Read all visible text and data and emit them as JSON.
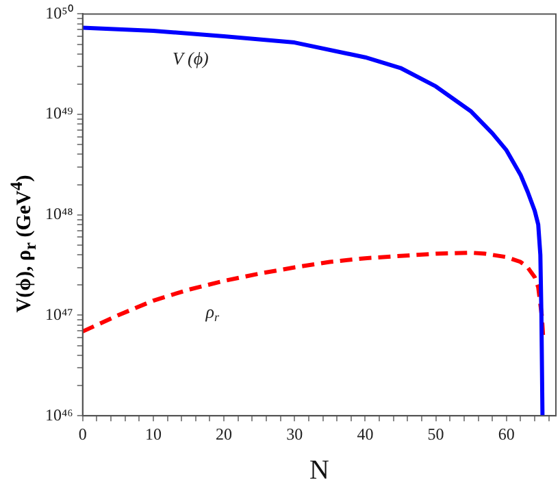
{
  "chart_data": {
    "type": "line",
    "xlabel": "N",
    "ylabel": "V(ϕ), ρ$_{r}$  (GeV$^{4}$)",
    "log": "y",
    "marker": "none",
    "grid": false,
    "legend": false,
    "xlim": [
      0,
      67
    ],
    "ylim": [
      1e+46,
      1e+50
    ],
    "xticks": [
      0,
      {
        "value": 2,
        "label": null
      },
      {
        "value": 4,
        "label": null
      },
      {
        "value": 6,
        "label": null
      },
      {
        "value": 8,
        "label": null
      },
      10,
      {
        "value": 12,
        "label": null
      },
      {
        "value": 14,
        "label": null
      },
      {
        "value": 16,
        "label": null
      },
      {
        "value": 18,
        "label": null
      },
      20,
      {
        "value": 22,
        "label": null
      },
      {
        "value": 24,
        "label": null
      },
      {
        "value": 26,
        "label": null
      },
      {
        "value": 28,
        "label": null
      },
      30,
      {
        "value": 32,
        "label": null
      },
      {
        "value": 34,
        "label": null
      },
      {
        "value": 36,
        "label": null
      },
      {
        "value": 38,
        "label": null
      },
      40,
      {
        "value": 42,
        "label": null
      },
      {
        "value": 44,
        "label": null
      },
      {
        "value": 46,
        "label": null
      },
      {
        "value": 48,
        "label": null
      },
      50,
      {
        "value": 52,
        "label": null
      },
      {
        "value": 54,
        "label": null
      },
      {
        "value": 56,
        "label": null
      },
      {
        "value": 58,
        "label": null
      },
      60,
      {
        "value": 62,
        "label": null
      },
      {
        "value": 64,
        "label": null
      },
      {
        "value": 66,
        "label": null
      }
    ],
    "yticks": [
      {
        "value": 1e+46,
        "label": "10⁴⁶"
      },
      {
        "value": 2e+46,
        "label": null
      },
      {
        "value": 3e+46,
        "label": null
      },
      {
        "value": 4e+46,
        "label": null
      },
      {
        "value": 5e+46,
        "label": null
      },
      {
        "value": 6e+46,
        "label": null
      },
      {
        "value": 7e+46,
        "label": null
      },
      {
        "value": 8e+46,
        "label": null
      },
      {
        "value": 9e+46,
        "label": null
      },
      {
        "value": 1e+47,
        "label": "10⁴⁷"
      },
      {
        "value": 2e+47,
        "label": null
      },
      {
        "value": 3e+47,
        "label": null
      },
      {
        "value": 4e+47,
        "label": null
      },
      {
        "value": 5e+47,
        "label": null
      },
      {
        "value": 6e+47,
        "label": null
      },
      {
        "value": 7e+47,
        "label": null
      },
      {
        "value": 8e+47,
        "label": null
      },
      {
        "value": 9e+47,
        "label": null
      },
      {
        "value": 1e+48,
        "label": "10⁴⁸"
      },
      {
        "value": 2e+48,
        "label": null
      },
      {
        "value": 3e+48,
        "label": null
      },
      {
        "value": 4e+48,
        "label": null
      },
      {
        "value": 5e+48,
        "label": null
      },
      {
        "value": 6e+48,
        "label": null
      },
      {
        "value": 7e+48,
        "label": null
      },
      {
        "value": 8e+48,
        "label": null
      },
      {
        "value": 9e+48,
        "label": null
      },
      {
        "value": 1e+49,
        "label": "10⁴⁹"
      },
      {
        "value": 2e+49,
        "label": null
      },
      {
        "value": 3e+49,
        "label": null
      },
      {
        "value": 4e+49,
        "label": null
      },
      {
        "value": 5e+49,
        "label": null
      },
      {
        "value": 6e+49,
        "label": null
      },
      {
        "value": 7e+49,
        "label": null
      },
      {
        "value": 8e+49,
        "label": null
      },
      {
        "value": 9e+49,
        "label": null
      },
      {
        "value": 1e+50,
        "label": "10⁵⁰"
      }
    ],
    "series": [
      {
        "name": "V (ϕ)",
        "color": "#0000ff",
        "line_style": "solid",
        "x": [
          0,
          10,
          20,
          30,
          40,
          45,
          50,
          55,
          58,
          60,
          62,
          63,
          64,
          64.5,
          64.8,
          64.95,
          65.1
        ],
        "values": [
          7.3e+49,
          6.8e+49,
          6e+49,
          5.2e+49,
          3.7e+49,
          2.9e+49,
          1.9e+49,
          1.07e+49,
          6.5e+48,
          4.4e+48,
          2.5e+48,
          1.7e+48,
          1.1e+48,
          8e+47,
          4e+47,
          1e+47,
          1e+46
        ]
      },
      {
        "name": "ρ$_{r}$",
        "color": "#ff0000",
        "line_style": "dashed",
        "x": [
          0,
          5,
          10,
          15,
          20,
          25,
          30,
          35,
          40,
          45,
          50,
          55,
          57,
          60,
          62,
          63,
          64,
          64.5,
          65,
          65.2
        ],
        "values": [
          6.9e+46,
          1e+47,
          1.4e+47,
          1.8e+47,
          2.2e+47,
          2.6e+47,
          3e+47,
          3.4e+47,
          3.7e+47,
          3.9e+47,
          4.1e+47,
          4.2e+47,
          4.1e+47,
          3.8e+47,
          3.4e+47,
          3e+47,
          2.4e+47,
          1.9e+47,
          1e+47,
          6e+46
        ]
      }
    ]
  }
}
